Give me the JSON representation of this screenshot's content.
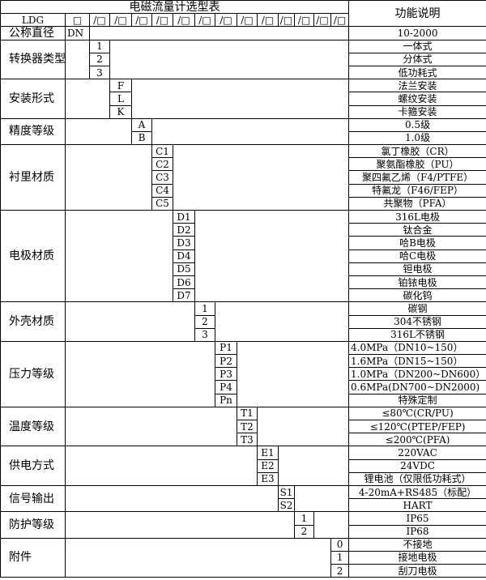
{
  "title": "电磁流量计选型表",
  "desc_header": "功能说明",
  "model_row": {
    "label": "LDG",
    "first_box": "□",
    "boxes": [
      "/□",
      "/□",
      "/□",
      "/□",
      "/□",
      "/□",
      "/□",
      "/□",
      "/□",
      "/□",
      "/□",
      "/□",
      "/□"
    ]
  },
  "nominal": {
    "label": "公称直径",
    "code": "DN",
    "desc": "10-2000"
  },
  "groups": [
    {
      "label": "转换器类型",
      "codes": [
        "1",
        "2",
        "3"
      ],
      "descs": [
        "一体式",
        "分体式",
        "低功耗式"
      ]
    },
    {
      "label": "安装形式",
      "codes": [
        "F",
        "L",
        "K"
      ],
      "descs": [
        "法兰安装",
        "螺纹安装",
        "卡箍安装"
      ]
    },
    {
      "label": "精度等级",
      "codes": [
        "A",
        "B"
      ],
      "descs": [
        "0.5级",
        "1.0级"
      ]
    },
    {
      "label": "衬里材质",
      "codes": [
        "C1",
        "C2",
        "C3",
        "C4",
        "C5"
      ],
      "descs": [
        "氯丁橡胶（CR）",
        "聚氨酯橡胶（PU）",
        "聚四氟乙烯（F4/PTFE）",
        "特氟龙（F46/FEP）",
        "共聚物（PFA）"
      ]
    },
    {
      "label": "电极材质",
      "codes": [
        "D1",
        "D2",
        "D3",
        "D4",
        "D5",
        "D6",
        "D7"
      ],
      "descs": [
        "316L电极",
        "钛合金",
        "哈B电极",
        "哈C电极",
        "钽电极",
        "铂铱电极",
        "碳化钨"
      ]
    },
    {
      "label": "外壳材质",
      "codes": [
        "1",
        "2",
        "3"
      ],
      "descs": [
        "碳钢",
        "304不锈钢",
        "316L不锈钢"
      ]
    },
    {
      "label": "压力等级",
      "codes": [
        "P1",
        "P2",
        "P3",
        "P4",
        "Pn"
      ],
      "descs": [
        "4.0MPa（DN10~150）",
        "1.6MPa（DN15~150）",
        "1.0MPa（DN200~DN600）",
        "0.6MPa(DN700~DN2000)",
        "特殊定制"
      ]
    },
    {
      "label": "温度等级",
      "codes": [
        "T1",
        "T2",
        "T3"
      ],
      "descs": [
        "≤80℃(CR/PU)",
        "≤120℃(PTEP/FEP)",
        "≤200℃(PFA)"
      ]
    },
    {
      "label": "供电方式",
      "codes": [
        "E1",
        "E2",
        "E3"
      ],
      "descs": [
        "220VAC",
        "24VDC",
        "锂电池（仅限低功耗式）"
      ]
    },
    {
      "label": "信号输出",
      "codes": [
        "S1",
        "S2"
      ],
      "descs": [
        "4-20mA+RS485（标配）",
        "HART"
      ]
    },
    {
      "label": "防护等级",
      "codes": [
        "1",
        "2"
      ],
      "descs": [
        "IP65",
        "IP68"
      ]
    },
    {
      "label": "附件",
      "codes": [
        "0",
        "1",
        "2"
      ],
      "descs": [
        "不接地",
        "接地电极",
        "刮刀电极"
      ]
    }
  ]
}
